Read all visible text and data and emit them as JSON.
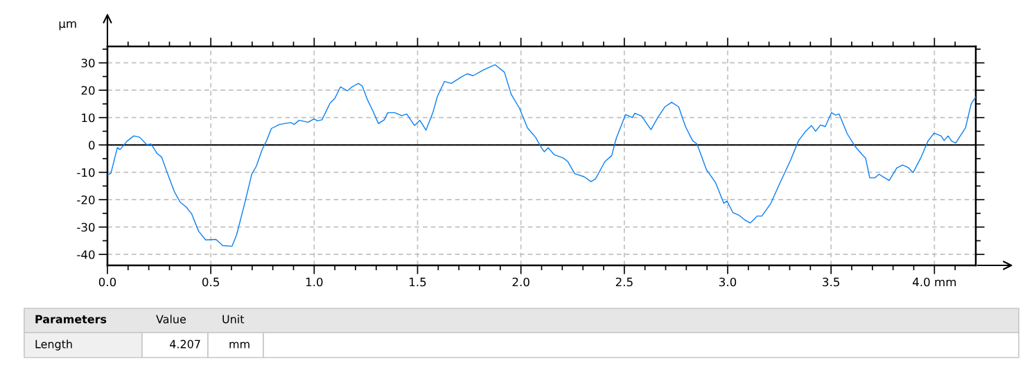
{
  "chart_data": {
    "type": "line",
    "ylabel": "µm",
    "x": [
      0,
      0.017,
      0.048,
      0.061,
      0.095,
      0.128,
      0.156,
      0.19,
      0.212,
      0.24,
      0.262,
      0.29,
      0.324,
      0.352,
      0.38,
      0.407,
      0.441,
      0.475,
      0.525,
      0.558,
      0.603,
      0.625,
      0.664,
      0.698,
      0.72,
      0.748,
      0.77,
      0.793,
      0.832,
      0.887,
      0.904,
      0.927,
      0.971,
      0.999,
      1.016,
      1.038,
      1.077,
      1.1,
      1.127,
      1.161,
      1.183,
      1.214,
      1.233,
      1.256,
      1.283,
      1.311,
      1.339,
      1.356,
      1.39,
      1.423,
      1.448,
      1.485,
      1.511,
      1.541,
      1.574,
      1.596,
      1.63,
      1.663,
      1.713,
      1.74,
      1.769,
      1.819,
      1.875,
      1.92,
      1.953,
      1.993,
      2.032,
      2.071,
      2.091,
      2.113,
      2.132,
      2.16,
      2.205,
      2.227,
      2.26,
      2.305,
      2.339,
      2.361,
      2.406,
      2.439,
      2.461,
      2.506,
      2.539,
      2.551,
      2.584,
      2.629,
      2.662,
      2.696,
      2.729,
      2.763,
      2.796,
      2.83,
      2.852,
      2.897,
      2.941,
      2.981,
      2.997,
      3.025,
      3.053,
      3.081,
      3.109,
      3.129,
      3.142,
      3.165,
      3.209,
      3.254,
      3.304,
      3.343,
      3.377,
      3.405,
      3.425,
      3.449,
      3.472,
      3.502,
      3.522,
      3.539,
      3.578,
      3.617,
      3.65,
      3.667,
      3.687,
      3.712,
      3.732,
      3.781,
      3.818,
      3.846,
      3.872,
      3.897,
      3.936,
      3.97,
      3.998,
      4.032,
      4.047,
      4.066,
      4.083,
      4.103,
      4.15,
      4.178,
      4.2
    ],
    "series": [
      {
        "color": "#0a7ff0",
        "values": [
          -11.1,
          -10.3,
          -1,
          -1.7,
          1.4,
          3.3,
          2.8,
          0.1,
          0.3,
          -3.1,
          -4.4,
          -10.3,
          -17.1,
          -20.9,
          -22.6,
          -25.1,
          -31.5,
          -34.7,
          -34.5,
          -36.8,
          -37,
          -32.8,
          -21.3,
          -10.7,
          -7.8,
          -1.8,
          1.6,
          6,
          7.5,
          8.2,
          7.5,
          9,
          8.3,
          9.5,
          8.8,
          9.2,
          15.3,
          17,
          21.2,
          19.8,
          21.2,
          22.5,
          21.5,
          16.8,
          12.6,
          7.8,
          9.2,
          11.8,
          11.8,
          10.7,
          11.3,
          7.1,
          9,
          5.4,
          11.8,
          17.7,
          23.2,
          22.5,
          24.9,
          26,
          25.3,
          27.4,
          29.3,
          26.6,
          18.5,
          13.4,
          6.2,
          2.8,
          0,
          -2.5,
          -1,
          -3.5,
          -4.8,
          -6.1,
          -10.5,
          -11.6,
          -13.4,
          -12.4,
          -6.1,
          -3.9,
          2.4,
          11.1,
          10,
          11.6,
          10.5,
          5.6,
          10,
          13.9,
          15.6,
          13.9,
          6.7,
          1.6,
          0.3,
          -9,
          -13.7,
          -21.3,
          -20.5,
          -24.7,
          -25.6,
          -27.3,
          -28.5,
          -27.1,
          -26,
          -26,
          -21.3,
          -13.7,
          -5.6,
          1.6,
          5,
          7.1,
          5,
          7.3,
          6.7,
          11.8,
          10.9,
          11.3,
          4.1,
          -0.6,
          -3.5,
          -4.8,
          -12,
          -12,
          -10.7,
          -13,
          -8.4,
          -7.3,
          -8.2,
          -10.1,
          -4.4,
          1.6,
          4.3,
          3.3,
          1.6,
          3.3,
          1.4,
          0.7,
          6.2,
          15.1,
          17.5
        ]
      }
    ],
    "xlim": [
      0,
      4.2
    ],
    "ylim": [
      -44,
      36
    ],
    "xticks": [
      {
        "value": 0,
        "label": "0.0"
      },
      {
        "value": 0.1,
        "label": null
      },
      {
        "value": 0.2,
        "label": null
      },
      {
        "value": 0.3,
        "label": null
      },
      {
        "value": 0.4,
        "label": null
      },
      {
        "value": 0.5,
        "label": "0.5"
      },
      {
        "value": 0.6,
        "label": null
      },
      {
        "value": 0.7,
        "label": null
      },
      {
        "value": 0.8,
        "label": null
      },
      {
        "value": 0.9,
        "label": null
      },
      {
        "value": 1,
        "label": "1.0"
      },
      {
        "value": 1.1,
        "label": null
      },
      {
        "value": 1.2,
        "label": null
      },
      {
        "value": 1.3,
        "label": null
      },
      {
        "value": 1.4,
        "label": null
      },
      {
        "value": 1.5,
        "label": "1.5"
      },
      {
        "value": 1.6,
        "label": null
      },
      {
        "value": 1.7,
        "label": null
      },
      {
        "value": 1.8,
        "label": null
      },
      {
        "value": 1.9,
        "label": null
      },
      {
        "value": 2,
        "label": "2.0"
      },
      {
        "value": 2.1,
        "label": null
      },
      {
        "value": 2.2,
        "label": null
      },
      {
        "value": 2.3,
        "label": null
      },
      {
        "value": 2.4,
        "label": null
      },
      {
        "value": 2.5,
        "label": "2.5"
      },
      {
        "value": 2.6,
        "label": null
      },
      {
        "value": 2.7,
        "label": null
      },
      {
        "value": 2.8,
        "label": null
      },
      {
        "value": 2.9,
        "label": null
      },
      {
        "value": 3,
        "label": "3.0"
      },
      {
        "value": 3.1,
        "label": null
      },
      {
        "value": 3.2,
        "label": null
      },
      {
        "value": 3.3,
        "label": null
      },
      {
        "value": 3.4,
        "label": null
      },
      {
        "value": 3.5,
        "label": "3.5"
      },
      {
        "value": 3.6,
        "label": null
      },
      {
        "value": 3.7,
        "label": null
      },
      {
        "value": 3.8,
        "label": null
      },
      {
        "value": 3.9,
        "label": null
      },
      {
        "value": 4,
        "label": "4.0 mm"
      },
      {
        "value": 4.1,
        "label": null
      }
    ],
    "yticks": [
      {
        "value": -40,
        "label": "-40"
      },
      {
        "value": -35,
        "label": null
      },
      {
        "value": -30,
        "label": "-30"
      },
      {
        "value": -25,
        "label": null
      },
      {
        "value": -20,
        "label": "-20"
      },
      {
        "value": -15,
        "label": null
      },
      {
        "value": -10,
        "label": "-10"
      },
      {
        "value": -5,
        "label": null
      },
      0,
      {
        "value": 5,
        "label": null
      },
      10,
      {
        "value": 15,
        "label": null
      },
      20,
      {
        "value": 25,
        "label": null
      },
      30,
      {
        "value": 35,
        "label": null
      }
    ],
    "grid": true,
    "line_style": "solid",
    "marker": "none",
    "ref_lines": [
      {
        "axis": "y",
        "value": 0,
        "color": "#000000"
      }
    ],
    "annotations": [
      "Parameters",
      "Value",
      "Unit",
      "Length",
      "4.207",
      "mm"
    ]
  }
}
